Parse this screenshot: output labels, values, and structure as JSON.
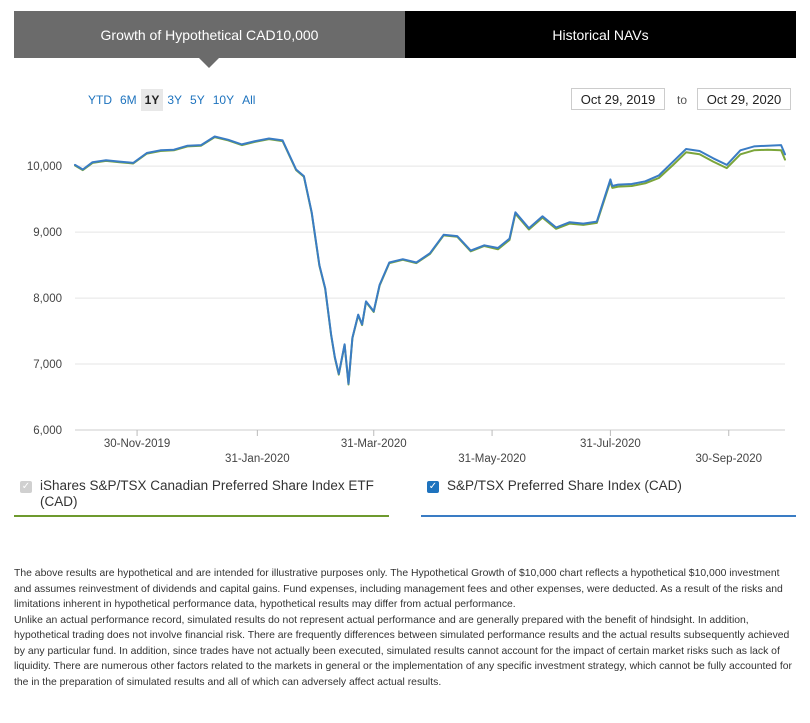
{
  "tabs": {
    "growth": "Growth of Hypothetical CAD10,000",
    "navs": "Historical NAVs"
  },
  "ranges": [
    "YTD",
    "6M",
    "1Y",
    "3Y",
    "5Y",
    "10Y",
    "All"
  ],
  "selected_range": "1Y",
  "date_range": {
    "from": "Oct 29, 2019",
    "sep": "to",
    "to": "Oct 29, 2020"
  },
  "legend": {
    "fund": "iShares S&P/TSX Canadian Preferred Share Index ETF (CAD)",
    "index": "S&P/TSX Preferred Share Index (CAD)"
  },
  "colors": {
    "fund": "#7ba53a",
    "index": "#3a7cc4",
    "accent_link": "#1e73be"
  },
  "icons": {
    "checkbox": "checkbox-icon",
    "caret": "caret-down-icon"
  },
  "chart_data": {
    "type": "line",
    "ylim": [
      6000,
      10700
    ],
    "yticks": [
      6000,
      7000,
      8000,
      9000,
      10000
    ],
    "ytick_labels": [
      "6,000",
      "7,000",
      "8,000",
      "9,000",
      "10,000"
    ],
    "xlim": [
      "2019-10-29",
      "2020-10-29"
    ],
    "xticks": [
      {
        "date": "2019-11-30",
        "label": "30-Nov-2019",
        "row": 1
      },
      {
        "date": "2020-01-31",
        "label": "31-Jan-2020",
        "row": 2
      },
      {
        "date": "2020-03-31",
        "label": "31-Mar-2020",
        "row": 1
      },
      {
        "date": "2020-05-31",
        "label": "31-May-2020",
        "row": 2
      },
      {
        "date": "2020-07-31",
        "label": "31-Jul-2020",
        "row": 1
      },
      {
        "date": "2020-09-30",
        "label": "30-Sep-2020",
        "row": 2
      }
    ],
    "grid": true,
    "series": [
      {
        "name": "S&P/TSX Preferred Share Index (CAD)",
        "x": [
          "2019-10-29",
          "2019-11-02",
          "2019-11-07",
          "2019-11-14",
          "2019-11-21",
          "2019-11-28",
          "2019-12-05",
          "2019-12-12",
          "2019-12-19",
          "2019-12-26",
          "2020-01-02",
          "2020-01-09",
          "2020-01-16",
          "2020-01-23",
          "2020-01-30",
          "2020-02-06",
          "2020-02-13",
          "2020-02-20",
          "2020-02-24",
          "2020-02-28",
          "2020-03-03",
          "2020-03-06",
          "2020-03-09",
          "2020-03-11",
          "2020-03-13",
          "2020-03-16",
          "2020-03-18",
          "2020-03-20",
          "2020-03-23",
          "2020-03-25",
          "2020-03-27",
          "2020-03-31",
          "2020-04-03",
          "2020-04-08",
          "2020-04-15",
          "2020-04-22",
          "2020-04-29",
          "2020-05-06",
          "2020-05-13",
          "2020-05-20",
          "2020-05-27",
          "2020-06-03",
          "2020-06-09",
          "2020-06-12",
          "2020-06-19",
          "2020-06-26",
          "2020-07-03",
          "2020-07-10",
          "2020-07-17",
          "2020-07-24",
          "2020-07-31",
          "2020-08-01",
          "2020-08-04",
          "2020-08-11",
          "2020-08-18",
          "2020-08-25",
          "2020-09-01",
          "2020-09-08",
          "2020-09-15",
          "2020-09-22",
          "2020-09-29",
          "2020-10-06",
          "2020-10-13",
          "2020-10-20",
          "2020-10-27",
          "2020-10-29"
        ],
        "y": [
          10020,
          9950,
          10060,
          10090,
          10070,
          10050,
          10200,
          10240,
          10250,
          10310,
          10320,
          10450,
          10400,
          10330,
          10380,
          10420,
          10390,
          9950,
          9850,
          9300,
          8500,
          8150,
          7450,
          7100,
          6850,
          7300,
          6700,
          7400,
          7750,
          7600,
          7950,
          7800,
          8200,
          8540,
          8590,
          8540,
          8680,
          8960,
          8940,
          8720,
          8800,
          8760,
          8900,
          9300,
          9060,
          9240,
          9070,
          9150,
          9130,
          9160,
          9800,
          9700,
          9720,
          9730,
          9770,
          9860,
          10060,
          10260,
          10230,
          10120,
          10020,
          10240,
          10300,
          10310,
          10320,
          10180
        ]
      },
      {
        "name": "iShares S&P/TSX Canadian Preferred Share Index ETF (CAD)",
        "x": [
          "2019-10-29",
          "2019-11-02",
          "2019-11-07",
          "2019-11-14",
          "2019-11-21",
          "2019-11-28",
          "2019-12-05",
          "2019-12-12",
          "2019-12-19",
          "2019-12-26",
          "2020-01-02",
          "2020-01-09",
          "2020-01-16",
          "2020-01-23",
          "2020-01-30",
          "2020-02-06",
          "2020-02-13",
          "2020-02-20",
          "2020-02-24",
          "2020-02-28",
          "2020-03-03",
          "2020-03-06",
          "2020-03-09",
          "2020-03-11",
          "2020-03-13",
          "2020-03-16",
          "2020-03-18",
          "2020-03-20",
          "2020-03-23",
          "2020-03-25",
          "2020-03-27",
          "2020-03-31",
          "2020-04-03",
          "2020-04-08",
          "2020-04-15",
          "2020-04-22",
          "2020-04-29",
          "2020-05-06",
          "2020-05-13",
          "2020-05-20",
          "2020-05-27",
          "2020-06-03",
          "2020-06-09",
          "2020-06-12",
          "2020-06-19",
          "2020-06-26",
          "2020-07-03",
          "2020-07-10",
          "2020-07-17",
          "2020-07-24",
          "2020-07-31",
          "2020-08-01",
          "2020-08-04",
          "2020-08-11",
          "2020-08-18",
          "2020-08-25",
          "2020-09-01",
          "2020-09-08",
          "2020-09-15",
          "2020-09-22",
          "2020-09-29",
          "2020-10-06",
          "2020-10-13",
          "2020-10-20",
          "2020-10-27",
          "2020-10-29"
        ],
        "y": [
          10010,
          9940,
          10050,
          10080,
          10060,
          10040,
          10190,
          10230,
          10240,
          10300,
          10310,
          10440,
          10390,
          10320,
          10370,
          10410,
          10380,
          9940,
          9840,
          9290,
          8490,
          8140,
          7440,
          7090,
          6840,
          7290,
          6690,
          7390,
          7740,
          7590,
          7940,
          7790,
          8190,
          8530,
          8580,
          8530,
          8670,
          8950,
          8930,
          8710,
          8790,
          8740,
          8880,
          9280,
          9040,
          9220,
          9050,
          9130,
          9110,
          9140,
          9770,
          9670,
          9690,
          9700,
          9740,
          9820,
          10010,
          10210,
          10180,
          10070,
          9970,
          10180,
          10240,
          10250,
          10240,
          10100
        ]
      }
    ]
  },
  "disclaimer": {
    "p1": "The above results are hypothetical and are intended for illustrative purposes only. The Hypothetical Growth of $10,000 chart reflects a hypothetical $10,000 investment and assumes reinvestment of dividends and capital gains. Fund expenses, including management fees and other expenses, were deducted. As a result of the risks and limitations inherent in hypothetical performance data, hypothetical results may differ from actual performance.",
    "p2": "Unlike an actual performance record, simulated results do not represent actual performance and are generally prepared with the benefit of hindsight. In addition, hypothetical trading does not involve financial risk. There are frequently differences between simulated performance results and the actual results subsequently achieved by any particular fund. In addition, since trades have not actually been executed, simulated results cannot account for the impact of certain market risks such as lack of liquidity. There are numerous other factors related to the markets in general or the implementation of any specific investment strategy, which cannot be fully accounted for the in the preparation of simulated results and all of which can adversely affect actual results."
  }
}
